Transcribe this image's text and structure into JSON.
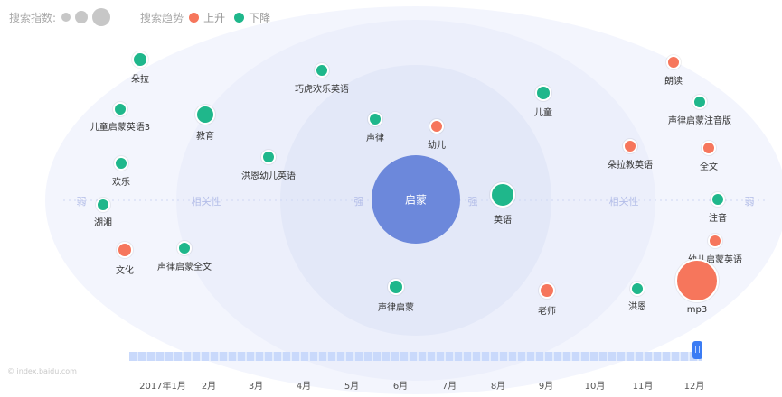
{
  "legend": {
    "index_label": "搜索指数:",
    "trend_label": "搜索趋势",
    "rise_label": "上升",
    "fall_label": "下降"
  },
  "colors": {
    "rise": "#f6765c",
    "fall": "#1fb78b",
    "center": "#6c88db",
    "band_outer": "#f1f4fd",
    "band_inner": "#dfe5f8"
  },
  "center": {
    "label": "启蒙"
  },
  "scale": {
    "strong_left": "强",
    "strong_right": "强",
    "relevance_left": "相关性",
    "relevance_right": "相关性",
    "weak_left": "弱",
    "weak_right": "弱"
  },
  "bubbles": [
    {
      "label": "朵拉",
      "trend": "fall"
    },
    {
      "label": "儿童启蒙英语3",
      "trend": "fall"
    },
    {
      "label": "欢乐",
      "trend": "fall"
    },
    {
      "label": "湖湘",
      "trend": "fall"
    },
    {
      "label": "文化",
      "trend": "rise"
    },
    {
      "label": "教育",
      "trend": "fall"
    },
    {
      "label": "声律启蒙全文",
      "trend": "fall"
    },
    {
      "label": "洪恩幼儿英语",
      "trend": "fall"
    },
    {
      "label": "巧虎欢乐英语",
      "trend": "fall"
    },
    {
      "label": "声律",
      "trend": "fall"
    },
    {
      "label": "幼儿",
      "trend": "rise"
    },
    {
      "label": "声律启蒙",
      "trend": "fall"
    },
    {
      "label": "英语",
      "trend": "fall"
    },
    {
      "label": "儿童",
      "trend": "fall"
    },
    {
      "label": "老师",
      "trend": "rise"
    },
    {
      "label": "朵拉教英语",
      "trend": "rise"
    },
    {
      "label": "洪恩",
      "trend": "fall"
    },
    {
      "label": "朗读",
      "trend": "rise"
    },
    {
      "label": "声律启蒙注音版",
      "trend": "fall"
    },
    {
      "label": "全文",
      "trend": "rise"
    },
    {
      "label": "注音",
      "trend": "fall"
    },
    {
      "label": "幼儿启蒙英语",
      "trend": "rise"
    },
    {
      "label": "mp3",
      "trend": "rise"
    }
  ],
  "timeline": {
    "months": [
      "2017年1月",
      "2月",
      "3月",
      "4月",
      "5月",
      "6月",
      "7月",
      "8月",
      "9月",
      "10月",
      "11月",
      "12月"
    ],
    "selected": "12月"
  },
  "watermark": "© index.baidu.com"
}
